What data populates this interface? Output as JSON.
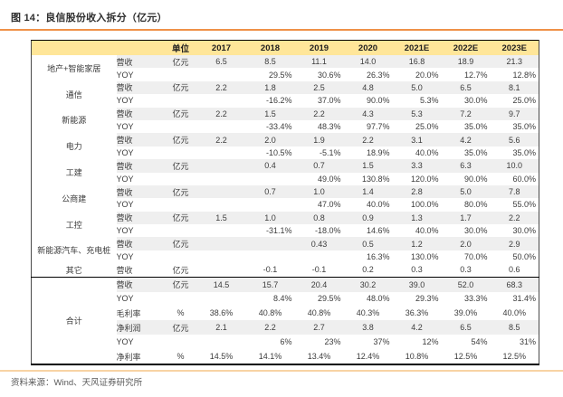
{
  "title": "图 14：良信股份收入拆分（亿元）",
  "source": "资料来源：Wind、天风证券研究所",
  "colors": {
    "accent_orange": "#EF9148",
    "footer_line_orange": "#F8D3A4",
    "header_bg": "#FFE699",
    "row_stripe": "#EFEFEF",
    "border_dark": "#000000"
  },
  "chart_data": {
    "type": "table",
    "title": "良信股份收入拆分（亿元）",
    "columns": [
      "单位",
      "2017",
      "2018",
      "2019",
      "2020",
      "2021E",
      "2022E",
      "2023E"
    ],
    "groups": [
      {
        "name": "地产+智能家居",
        "rows": [
          {
            "metric": "营收",
            "unit": "亿元",
            "align": "center",
            "shaded": true,
            "values": [
              "6.5",
              "8.5",
              "11.1",
              "14.0",
              "16.8",
              "18.9",
              "21.3"
            ]
          },
          {
            "metric": "YOY",
            "unit": "",
            "align": "right",
            "shaded": false,
            "values": [
              "",
              "29.5%",
              "30.6%",
              "26.3%",
              "20.0%",
              "12.7%",
              "12.8%"
            ]
          }
        ]
      },
      {
        "name": "通信",
        "rows": [
          {
            "metric": "营收",
            "unit": "亿元",
            "align": "center",
            "shaded": true,
            "values": [
              "2.2",
              "1.8",
              "2.5",
              "4.8",
              "5.0",
              "6.5",
              "8.1"
            ]
          },
          {
            "metric": "YOY",
            "unit": "",
            "align": "right",
            "shaded": false,
            "values": [
              "",
              "-16.2%",
              "37.0%",
              "90.0%",
              "5.3%",
              "30.0%",
              "25.0%"
            ]
          }
        ]
      },
      {
        "name": "新能源",
        "rows": [
          {
            "metric": "营收",
            "unit": "亿元",
            "align": "center",
            "shaded": true,
            "values": [
              "2.2",
              "1.5",
              "2.2",
              "4.3",
              "5.3",
              "7.2",
              "9.7"
            ]
          },
          {
            "metric": "YOY",
            "unit": "",
            "align": "right",
            "shaded": false,
            "values": [
              "",
              "-33.4%",
              "48.3%",
              "97.7%",
              "25.0%",
              "35.0%",
              "35.0%"
            ]
          }
        ]
      },
      {
        "name": "电力",
        "rows": [
          {
            "metric": "营收",
            "unit": "亿元",
            "align": "center",
            "shaded": true,
            "values": [
              "2.2",
              "2.0",
              "1.9",
              "2.2",
              "3.1",
              "4.2",
              "5.6"
            ]
          },
          {
            "metric": "YOY",
            "unit": "",
            "align": "right",
            "shaded": false,
            "values": [
              "",
              "-10.5%",
              "-5.1%",
              "18.9%",
              "40.0%",
              "35.0%",
              "35.0%"
            ]
          }
        ]
      },
      {
        "name": "工建",
        "rows": [
          {
            "metric": "营收",
            "unit": "亿元",
            "align": "center",
            "shaded": true,
            "values": [
              "",
              "0.4",
              "0.7",
              "1.5",
              "3.3",
              "6.3",
              "10.0"
            ]
          },
          {
            "metric": "YOY",
            "unit": "",
            "align": "right",
            "shaded": false,
            "values": [
              "",
              "",
              "49.0%",
              "130.8%",
              "120.0%",
              "90.0%",
              "60.0%"
            ]
          }
        ]
      },
      {
        "name": "公商建",
        "rows": [
          {
            "metric": "营收",
            "unit": "亿元",
            "align": "center",
            "shaded": true,
            "values": [
              "",
              "0.7",
              "1.0",
              "1.4",
              "2.8",
              "5.0",
              "7.8"
            ]
          },
          {
            "metric": "YOY",
            "unit": "",
            "align": "right",
            "shaded": false,
            "values": [
              "",
              "",
              "47.0%",
              "40.0%",
              "100.0%",
              "80.0%",
              "55.0%"
            ]
          }
        ]
      },
      {
        "name": "工控",
        "rows": [
          {
            "metric": "营收",
            "unit": "亿元",
            "align": "center",
            "shaded": true,
            "values": [
              "1.5",
              "1.0",
              "0.8",
              "0.9",
              "1.3",
              "1.7",
              "2.2"
            ]
          },
          {
            "metric": "YOY",
            "unit": "",
            "align": "right",
            "shaded": false,
            "values": [
              "",
              "-31.1%",
              "-18.0%",
              "14.6%",
              "40.0%",
              "30.0%",
              "30.0%"
            ]
          }
        ]
      },
      {
        "name": "新能源汽车、充电桩",
        "rows": [
          {
            "metric": "营收",
            "unit": "亿元",
            "align": "center",
            "shaded": true,
            "values": [
              "",
              "",
              "0.43",
              "0.5",
              "1.2",
              "2.0",
              "2.9"
            ]
          },
          {
            "metric": "YOY",
            "unit": "",
            "align": "right",
            "shaded": false,
            "values": [
              "",
              "",
              "",
              "16.3%",
              "130.0%",
              "70.0%",
              "50.0%"
            ]
          }
        ]
      },
      {
        "name": "其它",
        "rows": [
          {
            "metric": "营收",
            "unit": "亿元",
            "align": "center",
            "shaded": false,
            "values": [
              "",
              "-0.1",
              "-0.1",
              "0.2",
              "0.3",
              "0.3",
              "0.6"
            ]
          }
        ]
      }
    ],
    "total": {
      "name": "合计",
      "rows": [
        {
          "metric": "营收",
          "unit": "亿元",
          "align": "center",
          "shaded": true,
          "values": [
            "14.5",
            "15.7",
            "20.4",
            "30.2",
            "39.0",
            "52.0",
            "68.3"
          ]
        },
        {
          "metric": "YOY",
          "unit": "",
          "align": "right",
          "shaded": false,
          "values": [
            "",
            "8.4%",
            "29.5%",
            "48.0%",
            "29.3%",
            "33.3%",
            "31.4%"
          ]
        },
        {
          "metric": "毛利率",
          "unit": "%",
          "align": "center",
          "shaded": false,
          "values": [
            "38.6%",
            "40.8%",
            "40.8%",
            "40.3%",
            "36.3%",
            "39.0%",
            "40.0%"
          ]
        },
        {
          "metric": "净利润",
          "unit": "亿元",
          "align": "center",
          "shaded": true,
          "values": [
            "2.1",
            "2.2",
            "2.7",
            "3.8",
            "4.2",
            "6.5",
            "8.5"
          ]
        },
        {
          "metric": "YOY",
          "unit": "",
          "align": "right",
          "shaded": false,
          "values": [
            "",
            "6%",
            "23%",
            "37%",
            "12%",
            "54%",
            "31%"
          ]
        },
        {
          "metric": "净利率",
          "unit": "%",
          "align": "center",
          "shaded": false,
          "values": [
            "14.5%",
            "14.1%",
            "13.4%",
            "12.4%",
            "10.8%",
            "12.5%",
            "12.5%"
          ]
        }
      ]
    }
  }
}
